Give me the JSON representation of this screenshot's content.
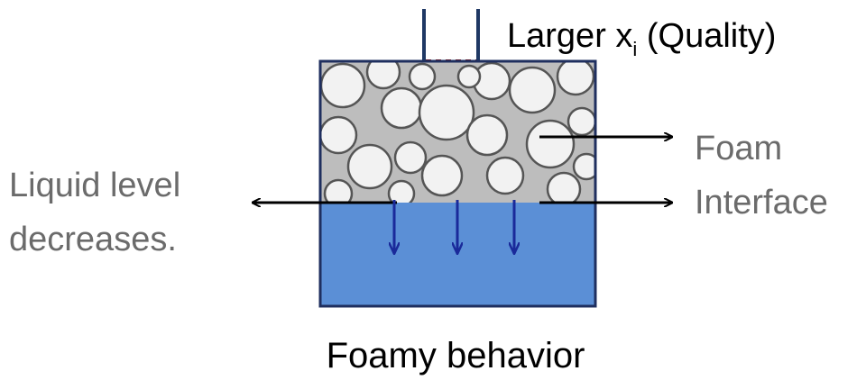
{
  "labels": {
    "quality": {
      "text": "Larger x",
      "subscript": "i",
      "suffix": " (Quality)"
    },
    "foam": "Foam",
    "interface": "Interface",
    "liquid_line1": "Liquid level",
    "liquid_line2": "decreases.",
    "caption": "Foamy behavior"
  }
}
